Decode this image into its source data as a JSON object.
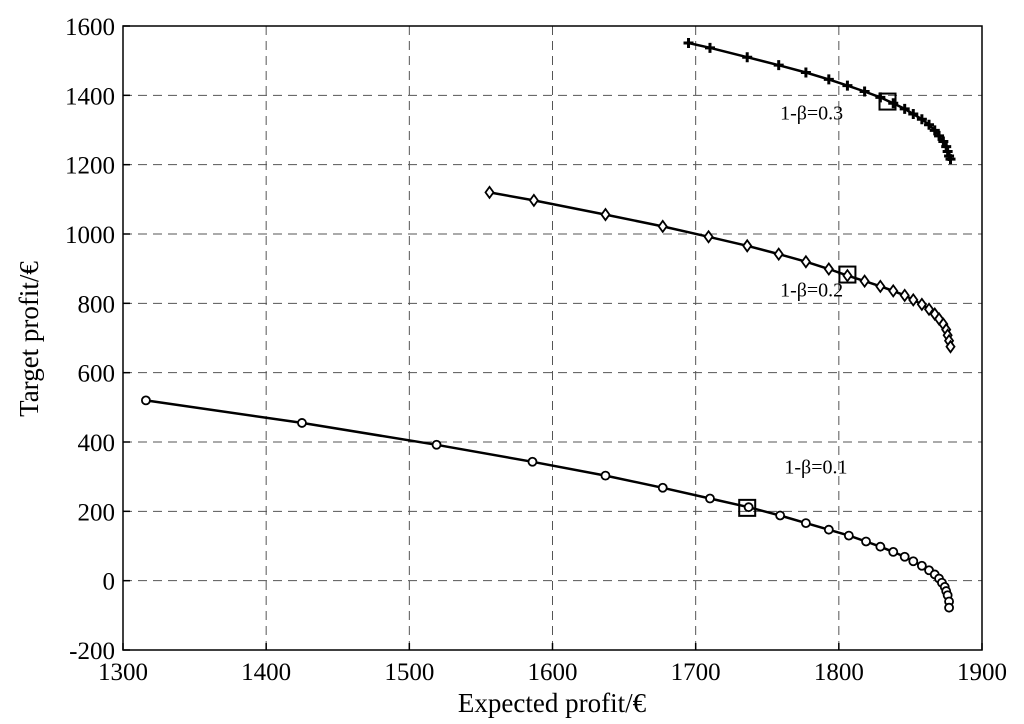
{
  "chart_data": {
    "type": "line",
    "xlabel": "Expected profit/€",
    "ylabel": "Target profit/€",
    "xlim": [
      1300,
      1900
    ],
    "ylim": [
      -200,
      1600
    ],
    "xticks": [
      1300,
      1400,
      1500,
      1600,
      1700,
      1800,
      1900
    ],
    "yticks": [
      -200,
      0,
      200,
      400,
      600,
      800,
      1000,
      1200,
      1400,
      1600
    ],
    "grid": true,
    "series": [
      {
        "label": "1-β=0.1",
        "marker": "circle",
        "x": [
          1316,
          1425,
          1519,
          1586,
          1637,
          1677,
          1710,
          1737,
          1759,
          1777,
          1793,
          1807,
          1819,
          1829,
          1838,
          1846,
          1852,
          1858,
          1863,
          1867,
          1870,
          1872,
          1874,
          1875,
          1876,
          1877,
          1877
        ],
        "y": [
          520,
          455,
          392,
          343,
          303,
          268,
          237,
          212,
          188,
          166,
          147,
          130,
          113,
          98,
          83,
          69,
          56,
          43,
          30,
          18,
          6,
          -6,
          -18,
          -30,
          -42,
          -60,
          -78
        ],
        "selected": {
          "x": 1736,
          "y": 210
        }
      },
      {
        "label": "1-β=0.2",
        "marker": "diamond",
        "x": [
          1556,
          1587,
          1637,
          1677,
          1709,
          1736,
          1758,
          1777,
          1793,
          1806,
          1818,
          1829,
          1838,
          1846,
          1852,
          1858,
          1863,
          1867,
          1870,
          1873,
          1875,
          1876,
          1877,
          1878
        ],
        "y": [
          1120,
          1097,
          1056,
          1022,
          992,
          966,
          942,
          920,
          899,
          880,
          864,
          849,
          836,
          823,
          810,
          797,
          783,
          769,
          755,
          740,
          724,
          708,
          692,
          675
        ],
        "selected": {
          "x": 1806,
          "y": 883
        }
      },
      {
        "label": "1-β=0.3",
        "marker": "plus",
        "x": [
          1695,
          1710,
          1736,
          1758,
          1777,
          1793,
          1806,
          1818,
          1829,
          1838,
          1846,
          1852,
          1858,
          1863,
          1867,
          1870,
          1873,
          1875,
          1876,
          1877,
          1878
        ],
        "y": [
          1551,
          1537,
          1510,
          1487,
          1466,
          1446,
          1428,
          1411,
          1394,
          1377,
          1361,
          1346,
          1331,
          1315,
          1299,
          1283,
          1267,
          1252,
          1238,
          1225,
          1216
        ],
        "selected": {
          "x": 1834,
          "y": 1382
        }
      }
    ],
    "annotations": [
      {
        "text": "1-β=0.3",
        "x": 1781,
        "y": 1350
      },
      {
        "text": "1-β=0.2",
        "x": 1781,
        "y": 840
      },
      {
        "text": "1-β=0.1",
        "x": 1784,
        "y": 330
      }
    ]
  }
}
